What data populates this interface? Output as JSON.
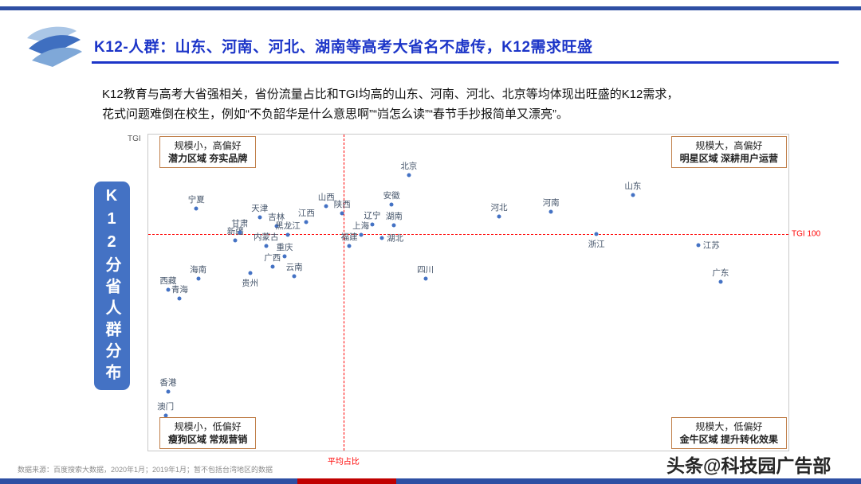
{
  "slide": {
    "title": "K12-人群：山东、河南、河北、湖南等高考大省名不虚传，K12需求旺盛",
    "body_line1": "K12教育与高考大省强相关，省份流量占比和TGI均高的山东、河南、河北、北京等均体现出旺盛的K12需求，",
    "body_line2": "花式问题难倒在校生，例如“不负韶华是什么意思啊”“岿怎么读”“春节手抄报简单又漂亮”。",
    "side_label": "K12分省人群分布",
    "source": "数据来源：百度搜索大数据，2020年1月；2019年1月；暂不包括台湾地区的数据",
    "watermark": "头条@科技园广告部"
  },
  "colors": {
    "accent_blue": "#2E4FA3",
    "title_blue": "#1C35C8",
    "dot_blue": "#4472C4",
    "ref_red": "#FF0000",
    "quadrant_border": "#C07F4A",
    "side_box_blue": "#4472C4"
  },
  "chart_data": {
    "type": "scatter",
    "title": "K12分省人群分布",
    "y_axis_label": "TGI",
    "x_ref_label": "平均占比",
    "y_ref_label": "TGI 100",
    "x_ref_pct": 30.5,
    "y_ref_pct": 31.5,
    "note": "坐标为图内相对位置百分比，x=流量占比方向，y=TGI方向（上高下低）",
    "quadrants": {
      "top_left": [
        "规模小，高偏好",
        "潜力区域 夯实品牌"
      ],
      "top_right": [
        "规模大，高偏好",
        "明星区域 深耕用户运营"
      ],
      "bottom_left": [
        "规模小，低偏好",
        "瘦狗区域 常规营销"
      ],
      "bottom_right": [
        "规模大，低偏好",
        "金牛区域 提升转化效果"
      ]
    },
    "points": [
      {
        "name": "宁夏",
        "x": 7.5,
        "y": 23.4,
        "label_pos": "above"
      },
      {
        "name": "西藏",
        "x": 3.1,
        "y": 49.1,
        "label_pos": "above"
      },
      {
        "name": "青海",
        "x": 4.9,
        "y": 51.9,
        "label_pos": "above"
      },
      {
        "name": "海南",
        "x": 7.8,
        "y": 45.6,
        "label_pos": "above"
      },
      {
        "name": "新疆",
        "x": 13.6,
        "y": 33.5,
        "label_pos": "above"
      },
      {
        "name": "甘肃",
        "x": 14.3,
        "y": 31.0,
        "label_pos": "above"
      },
      {
        "name": "内蒙古",
        "x": 18.4,
        "y": 35.3,
        "label_pos": "above"
      },
      {
        "name": "天津",
        "x": 17.4,
        "y": 26.2,
        "label_pos": "above"
      },
      {
        "name": "吉林",
        "x": 20.0,
        "y": 29.0,
        "label_pos": "above"
      },
      {
        "name": "黑龙江",
        "x": 21.8,
        "y": 31.7,
        "label_pos": "above"
      },
      {
        "name": "重庆",
        "x": 21.3,
        "y": 38.5,
        "label_pos": "above"
      },
      {
        "name": "广西",
        "x": 19.4,
        "y": 41.8,
        "label_pos": "above"
      },
      {
        "name": "贵州",
        "x": 15.9,
        "y": 43.8,
        "label_pos": "below"
      },
      {
        "name": "云南",
        "x": 22.8,
        "y": 44.8,
        "label_pos": "above"
      },
      {
        "name": "江西",
        "x": 24.7,
        "y": 27.7,
        "label_pos": "above"
      },
      {
        "name": "山西",
        "x": 27.8,
        "y": 22.7,
        "label_pos": "above"
      },
      {
        "name": "陕西",
        "x": 30.3,
        "y": 24.9,
        "label_pos": "above"
      },
      {
        "name": "上海",
        "x": 33.2,
        "y": 31.7,
        "label_pos": "above"
      },
      {
        "name": "福建",
        "x": 31.4,
        "y": 35.3,
        "label_pos": "above"
      },
      {
        "name": "辽宁",
        "x": 35.0,
        "y": 28.5,
        "label_pos": "above"
      },
      {
        "name": "湖南",
        "x": 38.4,
        "y": 28.7,
        "label_pos": "above"
      },
      {
        "name": "湖北",
        "x": 36.5,
        "y": 32.7,
        "label_pos": "right"
      },
      {
        "name": "安徽",
        "x": 38.0,
        "y": 22.2,
        "label_pos": "above"
      },
      {
        "name": "北京",
        "x": 40.7,
        "y": 12.8,
        "label_pos": "above"
      },
      {
        "name": "四川",
        "x": 43.3,
        "y": 45.6,
        "label_pos": "above"
      },
      {
        "name": "河北",
        "x": 54.8,
        "y": 25.9,
        "label_pos": "above"
      },
      {
        "name": "河南",
        "x": 62.9,
        "y": 24.4,
        "label_pos": "above"
      },
      {
        "name": "山东",
        "x": 75.7,
        "y": 19.1,
        "label_pos": "above"
      },
      {
        "name": "浙江",
        "x": 70.0,
        "y": 31.5,
        "label_pos": "below"
      },
      {
        "name": "江苏",
        "x": 85.9,
        "y": 35.0,
        "label_pos": "right"
      },
      {
        "name": "广东",
        "x": 89.4,
        "y": 46.6,
        "label_pos": "above"
      },
      {
        "name": "香港",
        "x": 3.1,
        "y": 81.4,
        "label_pos": "above"
      },
      {
        "name": "澳门",
        "x": 2.7,
        "y": 88.9,
        "label_pos": "above"
      }
    ]
  }
}
